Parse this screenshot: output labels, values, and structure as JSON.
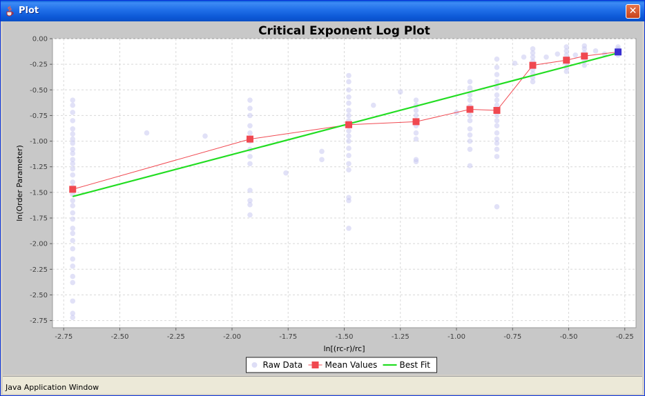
{
  "window": {
    "title": "Plot",
    "close_glyph": "✕",
    "status_text": "Java Application Window",
    "icon": "java-cup-icon"
  },
  "chart_data": {
    "type": "scatter",
    "title": "Critical Exponent Log Plot",
    "xlabel": "ln[(rc-r)/rc]",
    "ylabel": "ln(Order Parameter)",
    "xlim": [
      -2.8,
      -0.2
    ],
    "ylim": [
      -2.82,
      0.0
    ],
    "x_ticks": [
      -2.75,
      -2.5,
      -2.25,
      -2.0,
      -1.75,
      -1.5,
      -1.25,
      -1.0,
      -0.75,
      -0.5,
      -0.25
    ],
    "x_tick_labels": [
      "-2.75",
      "-2.50",
      "-2.25",
      "-2.00",
      "-1.75",
      "-1.50",
      "-1.25",
      "-1.00",
      "-0.75",
      "-0.50",
      "-0.25"
    ],
    "y_ticks": [
      0.0,
      -0.25,
      -0.5,
      -0.75,
      -1.0,
      -1.25,
      -1.5,
      -1.75,
      -2.0,
      -2.25,
      -2.5,
      -2.75
    ],
    "y_tick_labels": [
      "0.00",
      "-0.25",
      "-0.50",
      "-0.75",
      "-1.00",
      "-1.25",
      "-1.50",
      "-1.75",
      "-2.00",
      "-2.25",
      "-2.50",
      "-2.75"
    ],
    "grid": true,
    "legend_placement": "bottom-center",
    "colors": {
      "raw": "#c8c8f0",
      "mean": "#f04850",
      "fit": "#22dd22",
      "last_mean": "#3a30d0"
    },
    "series": [
      {
        "name": "Raw Data",
        "kind": "scatter",
        "points": [
          [
            -2.71,
            -0.6
          ],
          [
            -2.71,
            -0.65
          ],
          [
            -2.71,
            -0.72
          ],
          [
            -2.71,
            -0.8
          ],
          [
            -2.71,
            -0.88
          ],
          [
            -2.71,
            -0.93
          ],
          [
            -2.71,
            -0.98
          ],
          [
            -2.71,
            -1.02
          ],
          [
            -2.71,
            -1.08
          ],
          [
            -2.71,
            -1.12
          ],
          [
            -2.71,
            -1.18
          ],
          [
            -2.71,
            -1.22
          ],
          [
            -2.71,
            -1.27
          ],
          [
            -2.71,
            -1.33
          ],
          [
            -2.71,
            -1.4
          ],
          [
            -2.71,
            -1.45
          ],
          [
            -2.71,
            -1.52
          ],
          [
            -2.71,
            -1.58
          ],
          [
            -2.71,
            -1.63
          ],
          [
            -2.71,
            -1.7
          ],
          [
            -2.71,
            -1.76
          ],
          [
            -2.71,
            -1.85
          ],
          [
            -2.71,
            -1.9
          ],
          [
            -2.71,
            -1.97
          ],
          [
            -2.71,
            -2.05
          ],
          [
            -2.71,
            -2.15
          ],
          [
            -2.71,
            -2.22
          ],
          [
            -2.71,
            -2.32
          ],
          [
            -2.71,
            -2.38
          ],
          [
            -2.71,
            -2.56
          ],
          [
            -2.71,
            -2.68
          ],
          [
            -2.71,
            -2.72
          ],
          [
            -2.38,
            -0.92
          ],
          [
            -2.12,
            -0.95
          ],
          [
            -1.92,
            -0.6
          ],
          [
            -1.92,
            -0.68
          ],
          [
            -1.92,
            -0.75
          ],
          [
            -1.92,
            -0.85
          ],
          [
            -1.92,
            -0.92
          ],
          [
            -1.92,
            -1.0
          ],
          [
            -1.92,
            -1.08
          ],
          [
            -1.92,
            -1.15
          ],
          [
            -1.92,
            -1.22
          ],
          [
            -1.92,
            -1.48
          ],
          [
            -1.92,
            -1.58
          ],
          [
            -1.92,
            -1.62
          ],
          [
            -1.92,
            -1.72
          ],
          [
            -1.76,
            -1.31
          ],
          [
            -1.6,
            -1.1
          ],
          [
            -1.6,
            -1.18
          ],
          [
            -1.48,
            -0.36
          ],
          [
            -1.48,
            -0.42
          ],
          [
            -1.48,
            -0.5
          ],
          [
            -1.48,
            -0.57
          ],
          [
            -1.48,
            -0.63
          ],
          [
            -1.48,
            -0.7
          ],
          [
            -1.48,
            -0.75
          ],
          [
            -1.48,
            -0.8
          ],
          [
            -1.48,
            -0.85
          ],
          [
            -1.48,
            -0.9
          ],
          [
            -1.48,
            -0.95
          ],
          [
            -1.48,
            -1.0
          ],
          [
            -1.48,
            -1.07
          ],
          [
            -1.48,
            -1.14
          ],
          [
            -1.48,
            -1.22
          ],
          [
            -1.48,
            -1.28
          ],
          [
            -1.48,
            -1.55
          ],
          [
            -1.48,
            -1.58
          ],
          [
            -1.48,
            -1.85
          ],
          [
            -1.37,
            -0.65
          ],
          [
            -1.25,
            -0.52
          ],
          [
            -1.18,
            -0.6
          ],
          [
            -1.18,
            -0.65
          ],
          [
            -1.18,
            -0.7
          ],
          [
            -1.18,
            -0.75
          ],
          [
            -1.18,
            -0.8
          ],
          [
            -1.18,
            -0.85
          ],
          [
            -1.18,
            -0.92
          ],
          [
            -1.18,
            -0.98
          ],
          [
            -1.18,
            -1.18
          ],
          [
            -1.18,
            -1.2
          ],
          [
            -1.0,
            -0.72
          ],
          [
            -0.94,
            -0.42
          ],
          [
            -0.94,
            -0.48
          ],
          [
            -0.94,
            -0.55
          ],
          [
            -0.94,
            -0.6
          ],
          [
            -0.94,
            -0.66
          ],
          [
            -0.94,
            -0.7
          ],
          [
            -0.94,
            -0.75
          ],
          [
            -0.94,
            -0.8
          ],
          [
            -0.94,
            -0.88
          ],
          [
            -0.94,
            -0.94
          ],
          [
            -0.94,
            -1.0
          ],
          [
            -0.94,
            -1.08
          ],
          [
            -0.94,
            -1.24
          ],
          [
            -0.82,
            -0.2
          ],
          [
            -0.82,
            -0.28
          ],
          [
            -0.82,
            -0.35
          ],
          [
            -0.82,
            -0.42
          ],
          [
            -0.82,
            -0.48
          ],
          [
            -0.82,
            -0.55
          ],
          [
            -0.82,
            -0.6
          ],
          [
            -0.82,
            -0.65
          ],
          [
            -0.82,
            -0.7
          ],
          [
            -0.82,
            -0.75
          ],
          [
            -0.82,
            -0.8
          ],
          [
            -0.82,
            -0.85
          ],
          [
            -0.82,
            -0.92
          ],
          [
            -0.82,
            -0.98
          ],
          [
            -0.82,
            -1.02
          ],
          [
            -0.82,
            -1.08
          ],
          [
            -0.82,
            -1.15
          ],
          [
            -0.82,
            -1.64
          ],
          [
            -0.74,
            -0.24
          ],
          [
            -0.7,
            -0.18
          ],
          [
            -0.66,
            -0.1
          ],
          [
            -0.66,
            -0.14
          ],
          [
            -0.66,
            -0.18
          ],
          [
            -0.66,
            -0.22
          ],
          [
            -0.66,
            -0.26
          ],
          [
            -0.66,
            -0.3
          ],
          [
            -0.66,
            -0.34
          ],
          [
            -0.66,
            -0.38
          ],
          [
            -0.66,
            -0.42
          ],
          [
            -0.6,
            -0.18
          ],
          [
            -0.55,
            -0.15
          ],
          [
            -0.51,
            -0.08
          ],
          [
            -0.51,
            -0.12
          ],
          [
            -0.51,
            -0.16
          ],
          [
            -0.51,
            -0.2
          ],
          [
            -0.51,
            -0.24
          ],
          [
            -0.51,
            -0.28
          ],
          [
            -0.51,
            -0.32
          ],
          [
            -0.47,
            -0.16
          ],
          [
            -0.43,
            -0.07
          ],
          [
            -0.43,
            -0.1
          ],
          [
            -0.43,
            -0.14
          ],
          [
            -0.43,
            -0.18
          ],
          [
            -0.43,
            -0.22
          ],
          [
            -0.43,
            -0.26
          ],
          [
            -0.38,
            -0.12
          ],
          [
            -0.34,
            -0.15
          ],
          [
            -0.28,
            -0.08
          ],
          [
            -0.28,
            -0.1
          ],
          [
            -0.28,
            -0.12
          ],
          [
            -0.28,
            -0.14
          ],
          [
            -0.28,
            -0.16
          ]
        ]
      },
      {
        "name": "Mean Values",
        "kind": "line-markers",
        "points": [
          [
            -2.71,
            -1.47
          ],
          [
            -1.92,
            -0.98
          ],
          [
            -1.48,
            -0.84
          ],
          [
            -1.18,
            -0.81
          ],
          [
            -0.94,
            -0.69
          ],
          [
            -0.82,
            -0.7
          ],
          [
            -0.66,
            -0.26
          ],
          [
            -0.51,
            -0.21
          ],
          [
            -0.43,
            -0.17
          ],
          [
            -0.28,
            -0.13
          ]
        ]
      },
      {
        "name": "Best Fit",
        "kind": "line",
        "points": [
          [
            -2.71,
            -1.54
          ],
          [
            -0.28,
            -0.14
          ]
        ]
      }
    ]
  }
}
